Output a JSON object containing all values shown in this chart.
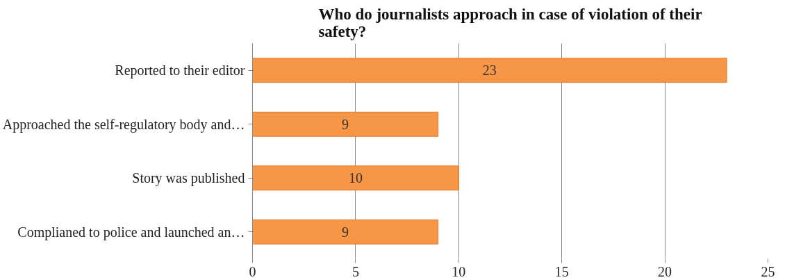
{
  "chart_data": {
    "type": "bar",
    "orientation": "horizontal",
    "title": "Who do journalists approach in case of violation of their safety?",
    "categories": [
      "Reported to their editor",
      "Approached the self-regulatory body and…",
      "Story was published",
      "Complianed to police and launched an…"
    ],
    "values": [
      23,
      9,
      10,
      9
    ],
    "color": "#f79646",
    "xlim": [
      0,
      25
    ],
    "xticks": [
      0,
      5,
      10,
      15,
      20,
      25
    ],
    "grid": "x",
    "data_labels": true
  }
}
